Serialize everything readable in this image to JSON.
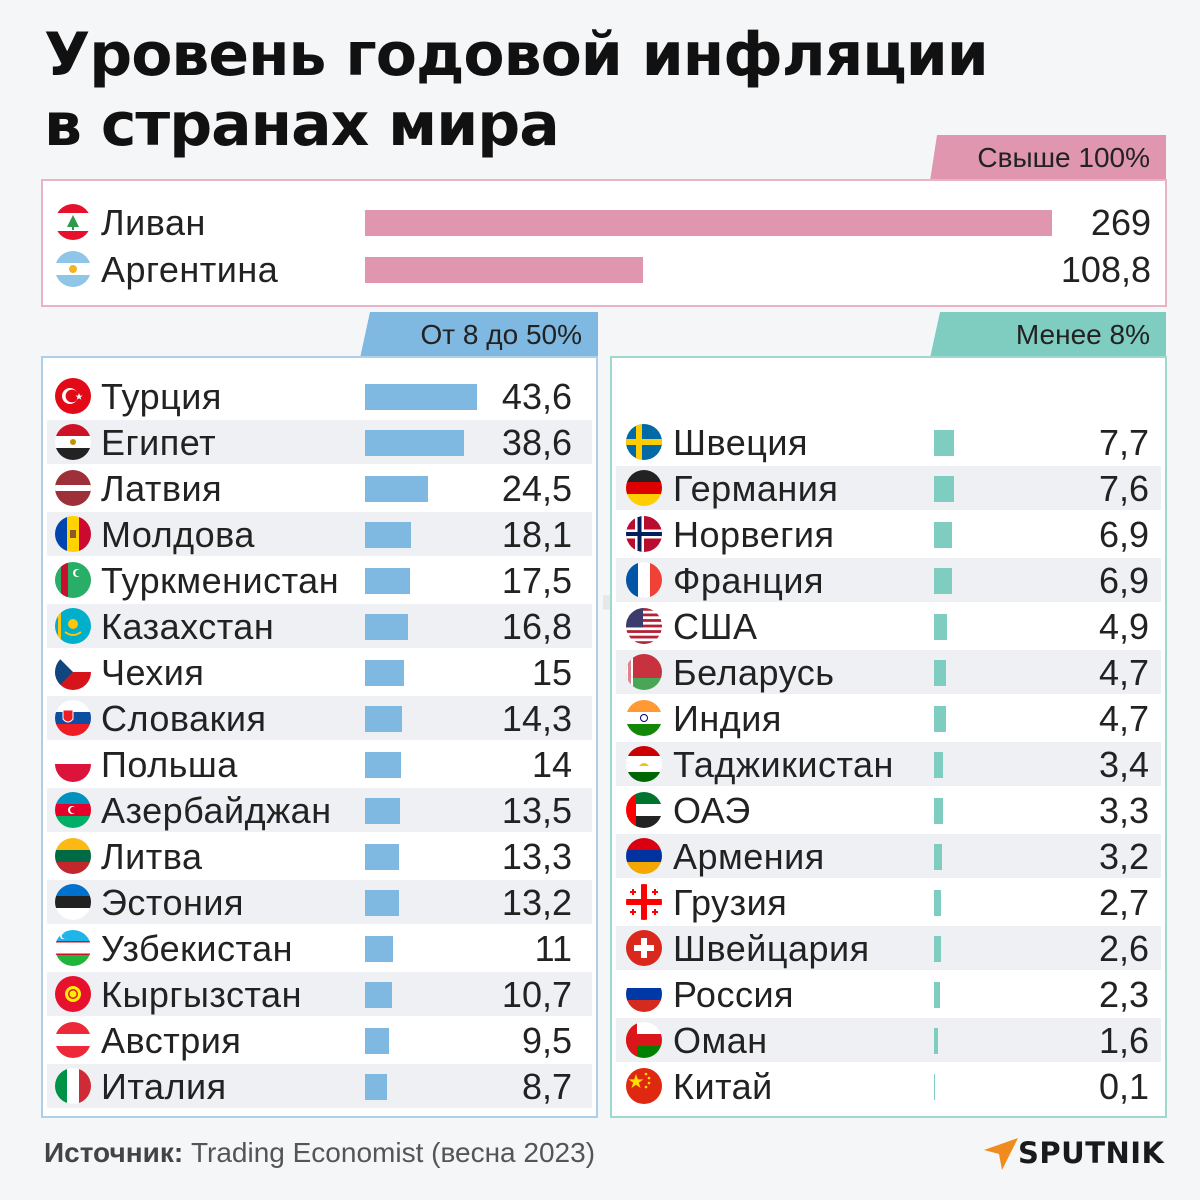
{
  "title": {
    "line1": "Уровень годовой инфляции",
    "line2": "в странах мира"
  },
  "groups": {
    "top": {
      "label": "Свыше 100%",
      "color": "#df96ae"
    },
    "mid": {
      "label": "От 8 до 50%",
      "color": "#7fb8e0"
    },
    "low": {
      "label": "Менее 8%",
      "color": "#7fcdc0"
    }
  },
  "source": {
    "label": "Источник:",
    "text": "Trading Economist (весна 2023)"
  },
  "brand": {
    "logo": "SPUTNIK",
    "watermark": "SPUTNIK"
  },
  "chart_data": [
    {
      "type": "bar",
      "title": "Свыше 100%",
      "orientation": "horizontal",
      "categories": [
        "Ливан",
        "Аргентина"
      ],
      "values": [
        269,
        108.8
      ],
      "labels": [
        "269",
        "108,8"
      ],
      "flags": [
        "lebanon-flag-icon",
        "argentina-flag-icon"
      ],
      "color": "#df96ae"
    },
    {
      "type": "bar",
      "title": "От 8 до 50%",
      "orientation": "horizontal",
      "categories": [
        "Турция",
        "Египет",
        "Латвия",
        "Молдова",
        "Туркменистан",
        "Казахстан",
        "Чехия",
        "Словакия",
        "Польша",
        "Азербайджан",
        "Литва",
        "Эстония",
        "Узбекистан",
        "Кыргызстан",
        "Австрия",
        "Италия"
      ],
      "values": [
        43.6,
        38.6,
        24.5,
        18.1,
        17.5,
        16.8,
        15,
        14.3,
        14,
        13.5,
        13.3,
        13.2,
        11,
        10.7,
        9.5,
        8.7
      ],
      "labels": [
        "43,6",
        "38,6",
        "24,5",
        "18,1",
        "17,5",
        "16,8",
        "15",
        "14,3",
        "14",
        "13,5",
        "13,3",
        "13,2",
        "11",
        "10,7",
        "9,5",
        "8,7"
      ],
      "flags": [
        "turkey-flag-icon",
        "egypt-flag-icon",
        "latvia-flag-icon",
        "moldova-flag-icon",
        "turkmenistan-flag-icon",
        "kazakhstan-flag-icon",
        "czechia-flag-icon",
        "slovakia-flag-icon",
        "poland-flag-icon",
        "azerbaijan-flag-icon",
        "lithuania-flag-icon",
        "estonia-flag-icon",
        "uzbekistan-flag-icon",
        "kyrgyzstan-flag-icon",
        "austria-flag-icon",
        "italy-flag-icon"
      ],
      "color": "#7fb8e0"
    },
    {
      "type": "bar",
      "title": "Менее 8%",
      "orientation": "horizontal",
      "categories": [
        "Швеция",
        "Германия",
        "Норвегия",
        "Франция",
        "США",
        "Беларусь",
        "Индия",
        "Таджикистан",
        "ОАЭ",
        "Армения",
        "Грузия",
        "Швейцария",
        "Россия",
        "Оман",
        "Китай"
      ],
      "values": [
        7.7,
        7.6,
        6.9,
        6.9,
        4.9,
        4.7,
        4.7,
        3.4,
        3.3,
        3.2,
        2.7,
        2.6,
        2.3,
        1.6,
        0.1
      ],
      "labels": [
        "7,7",
        "7,6",
        "6,9",
        "6,9",
        "4,9",
        "4,7",
        "4,7",
        "3,4",
        "3,3",
        "3,2",
        "2,7",
        "2,6",
        "2,3",
        "1,6",
        "0,1"
      ],
      "flags": [
        "sweden-flag-icon",
        "germany-flag-icon",
        "norway-flag-icon",
        "france-flag-icon",
        "usa-flag-icon",
        "belarus-flag-icon",
        "india-flag-icon",
        "tajikistan-flag-icon",
        "uae-flag-icon",
        "armenia-flag-icon",
        "georgia-flag-icon",
        "switzerland-flag-icon",
        "russia-flag-icon",
        "oman-flag-icon",
        "china-flag-icon"
      ],
      "color": "#7fcdc0"
    }
  ]
}
